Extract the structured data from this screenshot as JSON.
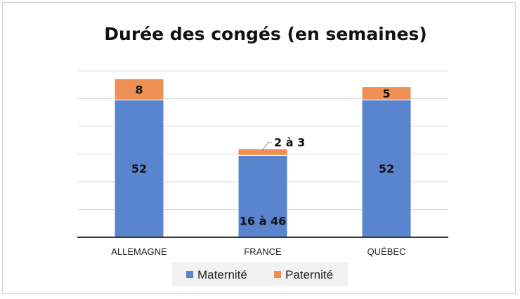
{
  "chart_data": {
    "type": "bar",
    "stacked": true,
    "title": "Durée des congés (en semaines)",
    "xlabel": "",
    "ylabel": "",
    "categories": [
      "ALLEMAGNE",
      "FRANCE",
      "QUÉBEC"
    ],
    "series": [
      {
        "name": "Maternité",
        "values": [
          52,
          31,
          52
        ],
        "labels": [
          "52",
          "16 à 46",
          "52"
        ],
        "color": "#5b84cf"
      },
      {
        "name": "Paternité",
        "values": [
          8,
          2.5,
          5
        ],
        "labels": [
          "8",
          "2 à 3",
          "5"
        ],
        "color": "#ee8f54"
      }
    ],
    "ylim": [
      0,
      63
    ],
    "grid": true,
    "legend_position": "bottom"
  }
}
